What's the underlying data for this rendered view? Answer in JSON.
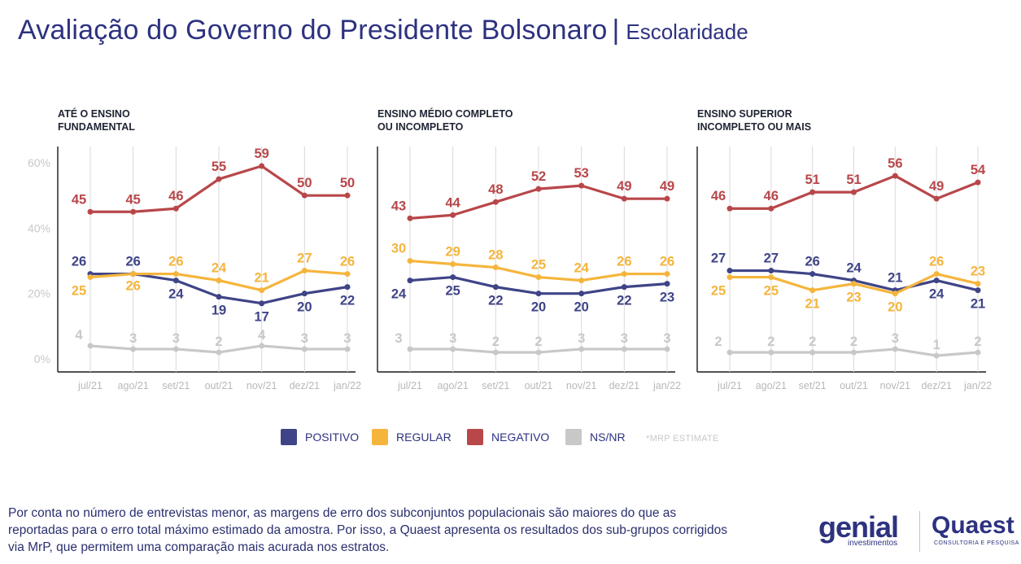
{
  "header": {
    "title": "Avaliação do Governo do Presidente Bolsonaro",
    "separator": "|",
    "subtitle": "Escolaridade"
  },
  "colors": {
    "positivo": "#3f4487",
    "regular": "#f5b53c",
    "negativo": "#b8474a",
    "nsnr": "#c8c8c8",
    "axis_text": "#c8c8c8",
    "text": "#2d3280"
  },
  "legend": {
    "items": [
      {
        "label": "POSITIVO",
        "color": "#3f4487"
      },
      {
        "label": "REGULAR",
        "color": "#f5b53c"
      },
      {
        "label": "NEGATIVO",
        "color": "#b8474a"
      },
      {
        "label": "NS/NR",
        "color": "#c8c8c8"
      }
    ],
    "note": "*MRP ESTIMATE"
  },
  "footnote": "Por conta no número de entrevistas menor, as margens de erro dos subconjuntos populacionais são maiores do que as reportadas para o erro total máximo estimado da amostra. Por isso, a Quaest apresenta os resultados dos sub-grupos corrigidos via MrP, que permitem uma comparação mais acurada nos estratos.",
  "logos": {
    "genial_main": "genial",
    "genial_sub": "investimentos",
    "quaest_main": "Quaest",
    "quaest_sub": "CONSULTORIA E PESQUISA"
  },
  "chart_data": [
    {
      "type": "line",
      "title": "ATÉ O ENSINO\nFUNDAMENTAL",
      "categories": [
        "jul/21",
        "ago/21",
        "set/21",
        "out/21",
        "nov/21",
        "dez/21",
        "jan/22"
      ],
      "yticks": [
        "60%",
        "40%",
        "20%",
        "0%"
      ],
      "ylim": [
        0,
        60
      ],
      "series": [
        {
          "name": "NEGATIVO",
          "values": [
            45,
            45,
            46,
            55,
            59,
            50,
            50
          ]
        },
        {
          "name": "POSITIVO",
          "values": [
            26,
            26,
            24,
            19,
            17,
            20,
            22
          ]
        },
        {
          "name": "REGULAR",
          "values": [
            25,
            26,
            26,
            24,
            21,
            27,
            26
          ]
        },
        {
          "name": "NS/NR",
          "values": [
            4,
            3,
            3,
            2,
            4,
            3,
            3
          ]
        }
      ]
    },
    {
      "type": "line",
      "title": "ENSINO MÉDIO COMPLETO\nOU INCOMPLETO",
      "categories": [
        "jul/21",
        "ago/21",
        "set/21",
        "out/21",
        "nov/21",
        "dez/21",
        "jan/22"
      ],
      "ylim": [
        0,
        60
      ],
      "series": [
        {
          "name": "NEGATIVO",
          "values": [
            43,
            44,
            48,
            52,
            53,
            49,
            49
          ]
        },
        {
          "name": "POSITIVO",
          "values": [
            24,
            25,
            22,
            20,
            20,
            22,
            23
          ]
        },
        {
          "name": "REGULAR",
          "values": [
            30,
            29,
            28,
            25,
            24,
            26,
            26
          ]
        },
        {
          "name": "NS/NR",
          "values": [
            3,
            3,
            2,
            2,
            3,
            3,
            3
          ]
        }
      ]
    },
    {
      "type": "line",
      "title": "ENSINO SUPERIOR\nINCOMPLETO OU MAIS",
      "categories": [
        "jul/21",
        "ago/21",
        "set/21",
        "out/21",
        "nov/21",
        "dez/21",
        "jan/22"
      ],
      "ylim": [
        0,
        60
      ],
      "series": [
        {
          "name": "NEGATIVO",
          "values": [
            46,
            46,
            51,
            51,
            56,
            49,
            54
          ]
        },
        {
          "name": "POSITIVO",
          "values": [
            27,
            27,
            26,
            24,
            21,
            24,
            21
          ]
        },
        {
          "name": "REGULAR",
          "values": [
            25,
            25,
            21,
            23,
            20,
            26,
            23
          ]
        },
        {
          "name": "NS/NR",
          "values": [
            2,
            2,
            2,
            2,
            3,
            1,
            2
          ]
        }
      ]
    }
  ]
}
